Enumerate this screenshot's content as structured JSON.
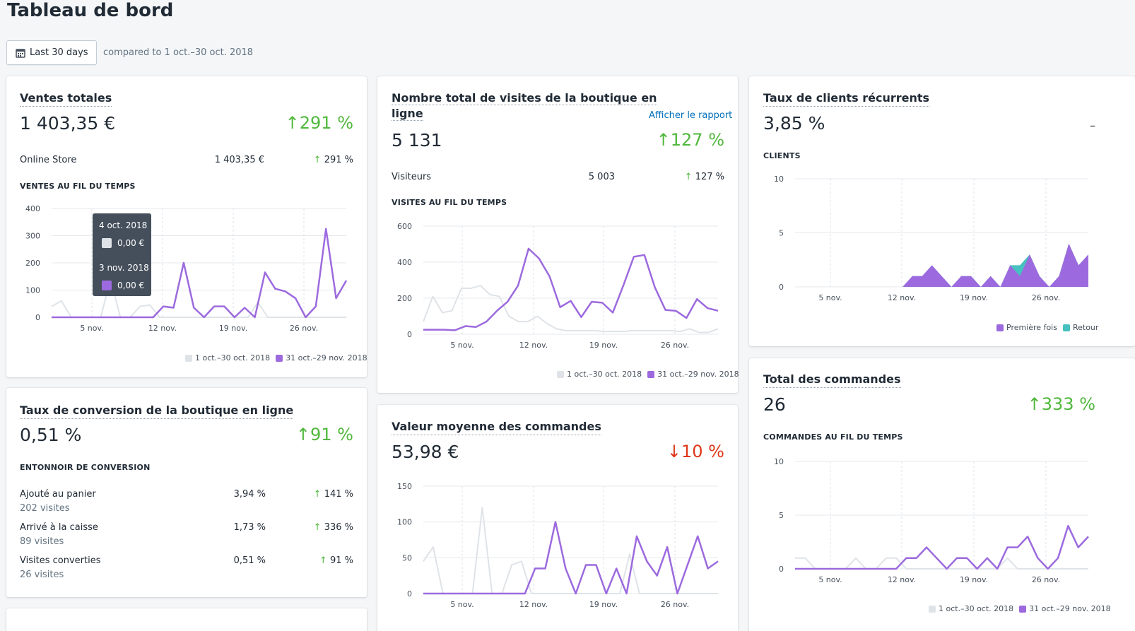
{
  "page": {
    "title": "Tableau de bord"
  },
  "toolbar": {
    "date_label": "Last 30 days",
    "compared": "compared to 1 oct.–30 oct. 2018"
  },
  "colors": {
    "current": "#9c6ade",
    "previous": "#dfe3e8",
    "returning": "#47c1bf",
    "up": "#50b83c",
    "down": "#de3618",
    "link": "#006fbb"
  },
  "legend": {
    "previous": "1 oct.–30 oct. 2018",
    "current": "31 oct.–29 nov. 2018"
  },
  "x_ticks": [
    "5 nov.",
    "12 nov.",
    "19 nov.",
    "26 nov."
  ],
  "sales": {
    "title": "Ventes totales",
    "value": "1 403,35 €",
    "change": "291 %",
    "row": {
      "label": "Online Store",
      "value": "1 403,35 €",
      "change": "291 %"
    },
    "chart_label": "VENTES AU FIL DU TEMPS",
    "tooltip": {
      "date1": "4 oct. 2018",
      "val1": "0,00 €",
      "date2": "3 nov. 2018",
      "val2": "0,00 €"
    }
  },
  "visits": {
    "title_line1": "Nombre total de visites de la boutique en",
    "title_line2": "ligne",
    "link": "Afficher le rapport",
    "value": "5 131",
    "change": "127 %",
    "row": {
      "label": "Visiteurs",
      "value": "5 003",
      "change": "127 %"
    },
    "chart_label": "VISITES AU FIL DU TEMPS"
  },
  "returning": {
    "title": "Taux de clients récurrents",
    "value": "3,85 %",
    "change": "–",
    "chart_label": "CLIENTS",
    "legend_first": "Première fois",
    "legend_return": "Retour"
  },
  "conversion": {
    "title": "Taux de conversion de la boutique en ligne",
    "value": "0,51 %",
    "change": "91 %",
    "funnel_label": "ENTONNOIR DE CONVERSION",
    "rows": [
      {
        "label": "Ajouté au panier",
        "sub": "202 visites",
        "value": "3,94 %",
        "change": "141 %"
      },
      {
        "label": "Arrivé à la caisse",
        "sub": "89 visites",
        "value": "1,73 %",
        "change": "336 %"
      },
      {
        "label": "Visites converties",
        "sub": "26 visites",
        "value": "0,51 %",
        "change": "91 %"
      }
    ]
  },
  "aov": {
    "title": "Valeur moyenne des commandes",
    "value": "53,98 €",
    "change": "10 %"
  },
  "orders": {
    "title": "Total des commandes",
    "value": "26",
    "change": "333 %",
    "chart_label": "COMMANDES AU FIL DU TEMPS"
  },
  "chart_data": [
    {
      "id": "sales",
      "type": "line",
      "ylim": [
        0,
        400
      ],
      "yticks": [
        "0",
        "100",
        "200",
        "300",
        "400"
      ],
      "series": [
        {
          "name": "1 oct.–30 oct. 2018",
          "values": [
            40,
            60,
            0,
            0,
            0,
            0,
            140,
            0,
            0,
            40,
            45,
            0,
            0,
            0,
            0,
            0,
            0,
            0,
            0,
            0,
            0,
            55,
            0,
            0,
            0,
            0,
            0,
            0,
            0,
            0,
            0
          ]
        },
        {
          "name": "31 oct.–29 nov. 2018",
          "values": [
            0,
            0,
            0,
            0,
            0,
            0,
            0,
            0,
            0,
            0,
            0,
            40,
            35,
            200,
            35,
            0,
            40,
            40,
            0,
            35,
            0,
            165,
            105,
            95,
            70,
            0,
            40,
            325,
            70,
            135
          ]
        }
      ]
    },
    {
      "id": "visits",
      "type": "line",
      "ylim": [
        0,
        600
      ],
      "yticks": [
        "0",
        "200",
        "400",
        "600"
      ],
      "series": [
        {
          "name": "1 oct.–30 oct. 2018",
          "values": [
            70,
            210,
            120,
            130,
            255,
            255,
            270,
            220,
            210,
            100,
            70,
            70,
            100,
            60,
            30,
            20,
            20,
            20,
            20,
            15,
            15,
            15,
            20,
            20,
            20,
            20,
            20,
            15,
            30,
            10,
            10,
            30
          ]
        },
        {
          "name": "31 oct.–29 nov. 2018",
          "values": [
            25,
            25,
            25,
            22,
            45,
            40,
            70,
            130,
            180,
            270,
            475,
            420,
            320,
            150,
            185,
            95,
            180,
            175,
            120,
            270,
            430,
            440,
            260,
            135,
            130,
            90,
            195,
            145,
            130
          ]
        }
      ]
    },
    {
      "id": "returning",
      "type": "area",
      "ylim": [
        0,
        10
      ],
      "yticks": [
        "0",
        "5",
        "10"
      ],
      "series": [
        {
          "name": "Première fois",
          "values": [
            0,
            0,
            0,
            0,
            0,
            0,
            0,
            0,
            0,
            0,
            0,
            0,
            1,
            1,
            2,
            1,
            0,
            1,
            1,
            0,
            1,
            0,
            2,
            1,
            3,
            1,
            0,
            1,
            4,
            2,
            3
          ]
        },
        {
          "name": "Retour",
          "values": [
            0,
            0,
            0,
            0,
            0,
            0,
            0,
            0,
            0,
            0,
            0,
            0,
            0,
            0,
            0,
            0,
            0,
            0,
            0,
            0,
            0,
            0,
            0,
            1,
            0,
            0,
            0,
            0,
            0,
            0,
            0
          ]
        }
      ]
    },
    {
      "id": "aov",
      "type": "line",
      "ylim": [
        0,
        150
      ],
      "yticks": [
        "0",
        "50",
        "100",
        "150"
      ],
      "series": [
        {
          "name": "1 oct.–30 oct. 2018",
          "values": [
            45,
            65,
            0,
            0,
            0,
            0,
            120,
            0,
            0,
            40,
            45,
            0,
            0,
            0,
            0,
            0,
            0,
            0,
            0,
            0,
            0,
            55,
            0,
            0,
            0,
            0,
            0,
            0,
            0,
            0,
            0
          ]
        },
        {
          "name": "31 oct.–29 nov. 2018",
          "values": [
            0,
            0,
            0,
            0,
            0,
            0,
            0,
            0,
            0,
            0,
            0,
            35,
            35,
            100,
            35,
            0,
            40,
            40,
            0,
            35,
            0,
            80,
            45,
            25,
            65,
            0,
            40,
            80,
            35,
            45
          ]
        }
      ]
    },
    {
      "id": "orders",
      "type": "line",
      "ylim": [
        0,
        10
      ],
      "yticks": [
        "0",
        "5",
        "10"
      ],
      "series": [
        {
          "name": "1 oct.–30 oct. 2018",
          "values": [
            1,
            1,
            0,
            0,
            0,
            0,
            1,
            0,
            0,
            1,
            1,
            0,
            0,
            0,
            0,
            0,
            0,
            0,
            0,
            0,
            0,
            1,
            0,
            0,
            0,
            0,
            0,
            0,
            0,
            0
          ]
        },
        {
          "name": "31 oct.–29 nov. 2018",
          "values": [
            0,
            0,
            0,
            0,
            0,
            0,
            0,
            0,
            0,
            0,
            0,
            1,
            1,
            2,
            1,
            0,
            1,
            1,
            0,
            1,
            0,
            2,
            2,
            3,
            1,
            0,
            1,
            4,
            2,
            3
          ]
        }
      ]
    }
  ]
}
